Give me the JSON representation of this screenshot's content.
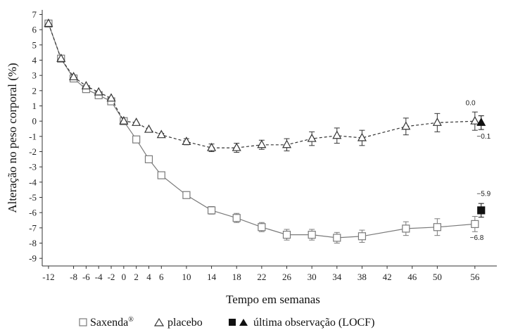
{
  "chart_data": {
    "type": "line",
    "xlabel": "Tempo em semanas",
    "ylabel": "Alteração no peso corporal (%)",
    "xlim": [
      -13,
      59.5
    ],
    "ylim": [
      -9.5,
      7.3
    ],
    "x_ticks": [
      -12,
      -8,
      -6,
      -4,
      -2,
      0,
      2,
      4,
      6,
      10,
      14,
      18,
      22,
      26,
      30,
      34,
      38,
      42,
      46,
      50,
      56
    ],
    "y_ticks": [
      7,
      6,
      5,
      4,
      3,
      2,
      1,
      0,
      -1,
      -2,
      -3,
      -4,
      -5,
      -6,
      -7,
      -8,
      -9
    ],
    "grid": false,
    "legend_position": "bottom",
    "series": [
      {
        "name": "Saxenda",
        "marker": "open-square",
        "line_style": "solid",
        "color": "#7a7a7a",
        "points": [
          {
            "x": -12,
            "y": 6.4,
            "err": 0
          },
          {
            "x": -10,
            "y": 4.1,
            "err": 0
          },
          {
            "x": -8,
            "y": 2.8,
            "err": 0
          },
          {
            "x": -6,
            "y": 2.1,
            "err": 0
          },
          {
            "x": -4,
            "y": 1.7,
            "err": 0
          },
          {
            "x": -2,
            "y": 1.3,
            "err": 0
          },
          {
            "x": 0,
            "y": 0.0,
            "err": 0
          },
          {
            "x": 2,
            "y": -1.2,
            "err": 0
          },
          {
            "x": 4,
            "y": -2.5,
            "err": 0
          },
          {
            "x": 6,
            "y": -3.55,
            "err": 0.1
          },
          {
            "x": 10,
            "y": -4.85,
            "err": 0.15
          },
          {
            "x": 14,
            "y": -5.85,
            "err": 0.25
          },
          {
            "x": 18,
            "y": -6.35,
            "err": 0.3
          },
          {
            "x": 22,
            "y": -6.95,
            "err": 0.3
          },
          {
            "x": 26,
            "y": -7.45,
            "err": 0.35
          },
          {
            "x": 30,
            "y": -7.45,
            "err": 0.35
          },
          {
            "x": 34,
            "y": -7.65,
            "err": 0.35
          },
          {
            "x": 38,
            "y": -7.55,
            "err": 0.4
          },
          {
            "x": 45,
            "y": -7.05,
            "err": 0.45
          },
          {
            "x": 50,
            "y": -6.95,
            "err": 0.55
          },
          {
            "x": 56,
            "y": -6.75,
            "err": 0.5
          }
        ]
      },
      {
        "name": "placebo",
        "marker": "open-triangle",
        "line_style": "dashed",
        "color": "#333333",
        "points": [
          {
            "x": -12,
            "y": 6.4,
            "err": 0
          },
          {
            "x": -10,
            "y": 4.1,
            "err": 0
          },
          {
            "x": -8,
            "y": 2.9,
            "err": 0
          },
          {
            "x": -6,
            "y": 2.3,
            "err": 0
          },
          {
            "x": -4,
            "y": 1.9,
            "err": 0
          },
          {
            "x": -2,
            "y": 1.5,
            "err": 0
          },
          {
            "x": 0,
            "y": 0.0,
            "err": 0
          },
          {
            "x": 2,
            "y": -0.1,
            "err": 0
          },
          {
            "x": 4,
            "y": -0.55,
            "err": 0
          },
          {
            "x": 6,
            "y": -0.9,
            "err": 0.1
          },
          {
            "x": 10,
            "y": -1.35,
            "err": 0.2
          },
          {
            "x": 14,
            "y": -1.75,
            "err": 0.25
          },
          {
            "x": 18,
            "y": -1.75,
            "err": 0.3
          },
          {
            "x": 22,
            "y": -1.55,
            "err": 0.3
          },
          {
            "x": 26,
            "y": -1.55,
            "err": 0.4
          },
          {
            "x": 30,
            "y": -1.15,
            "err": 0.45
          },
          {
            "x": 34,
            "y": -0.95,
            "err": 0.5
          },
          {
            "x": 38,
            "y": -1.1,
            "err": 0.5
          },
          {
            "x": 45,
            "y": -0.35,
            "err": 0.55
          },
          {
            "x": 50,
            "y": -0.1,
            "err": 0.6
          },
          {
            "x": 56,
            "y": 0.0,
            "err": 0.6
          }
        ]
      }
    ],
    "locf": [
      {
        "name": "Saxenda LOCF",
        "x": 57,
        "y": -5.85,
        "err": 0.45,
        "marker": "filled-square"
      },
      {
        "name": "placebo LOCF",
        "x": 57,
        "y": -0.1,
        "err": 0.45,
        "marker": "filled-triangle"
      }
    ],
    "annotations": [
      {
        "text": "0.0",
        "x": 55.3,
        "y": 1.05
      },
      {
        "text": "−0.1",
        "x": 57.4,
        "y": -1.15
      },
      {
        "text": "−5.9",
        "x": 57.4,
        "y": -4.9
      },
      {
        "text": "−6.8",
        "x": 56.3,
        "y": -7.8
      }
    ],
    "legend": {
      "saxenda_label": "Saxenda",
      "saxenda_superscript": "®",
      "placebo_label": "placebo",
      "locf_label": "última observação (LOCF)"
    }
  }
}
